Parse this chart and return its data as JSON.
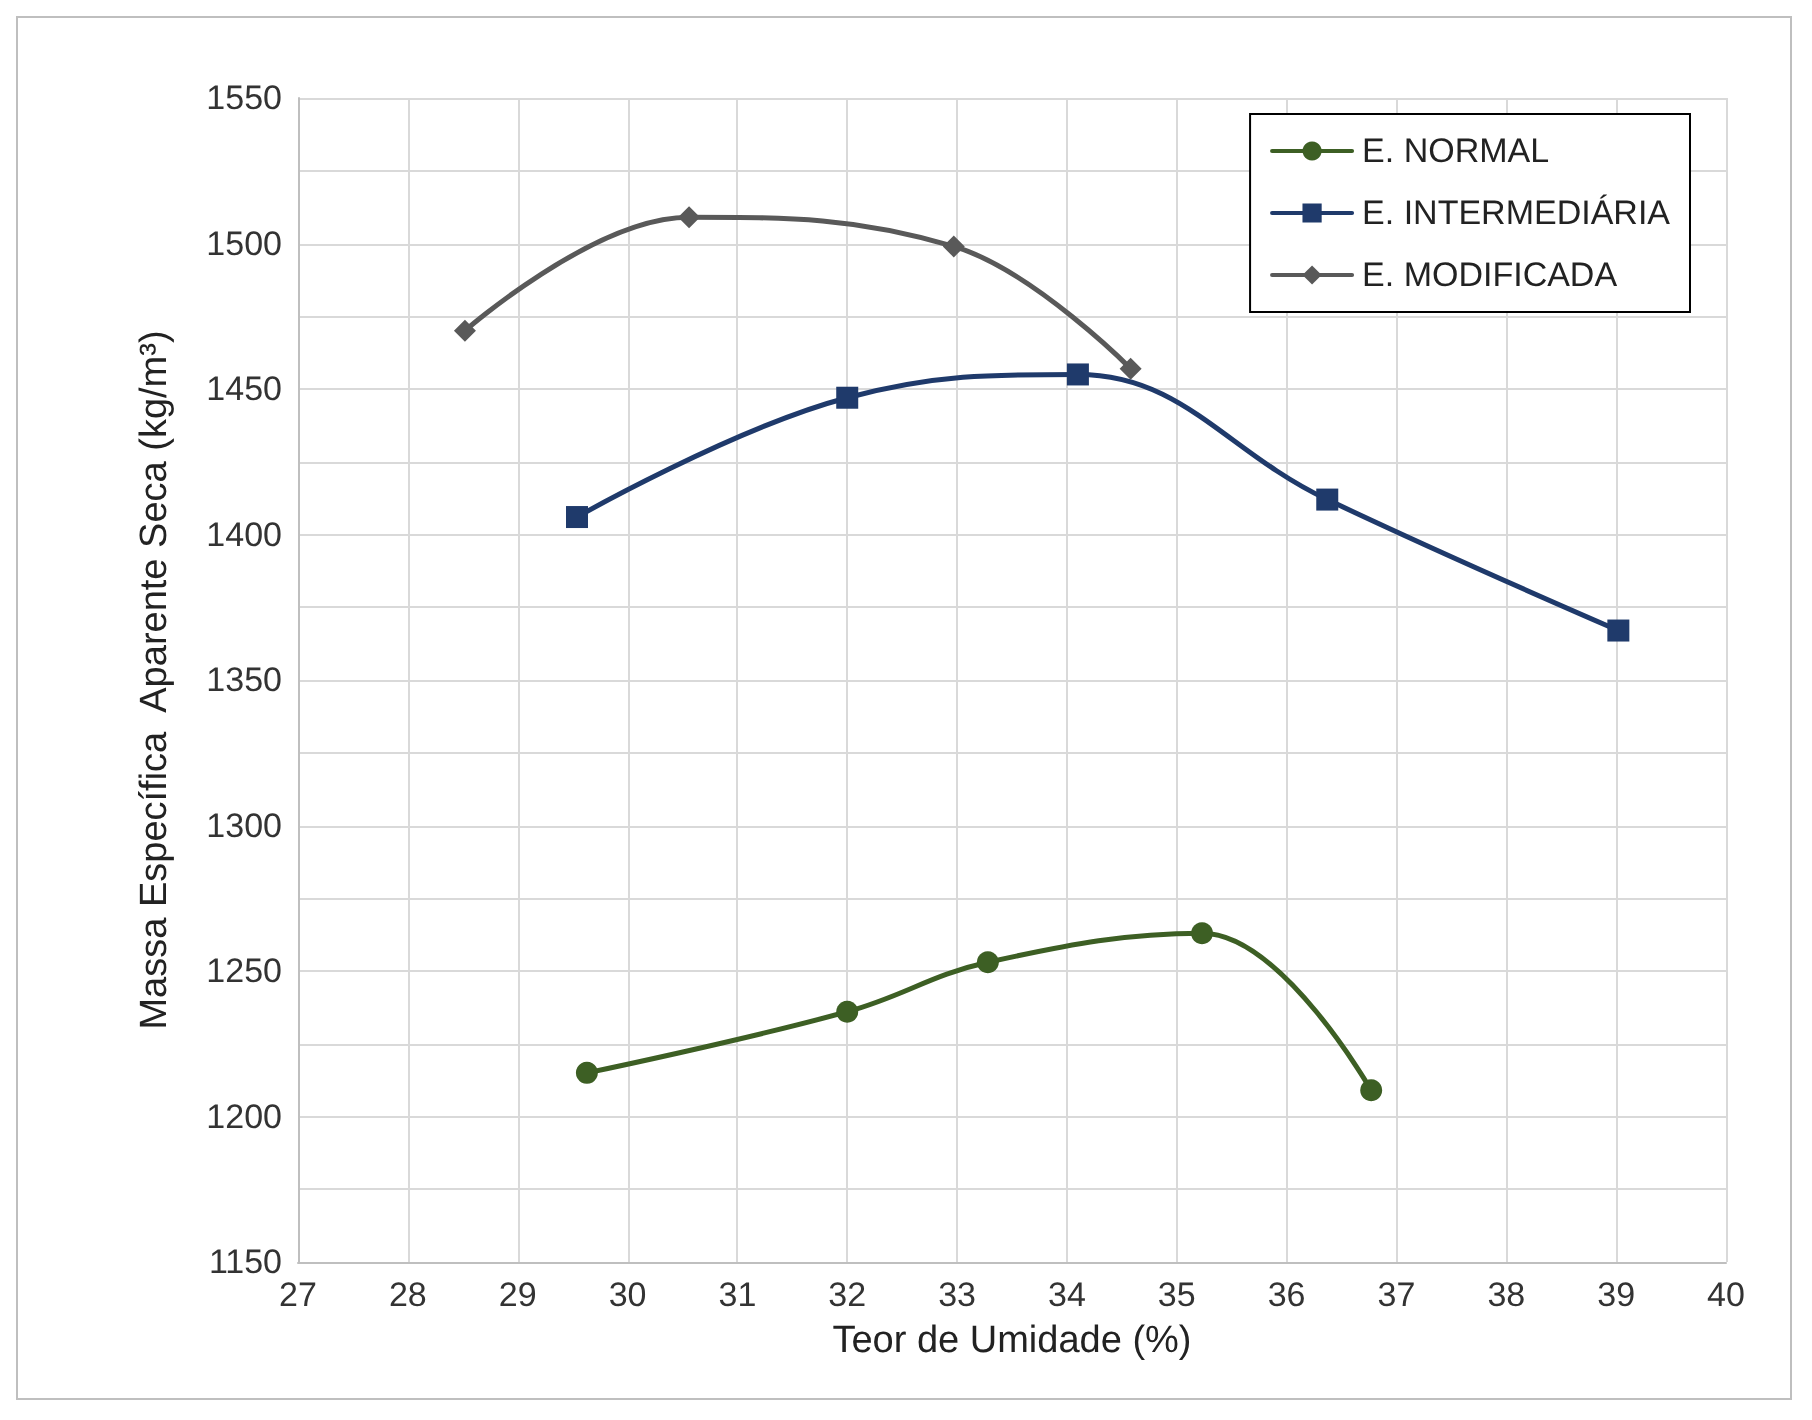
{
  "chart_data": {
    "type": "line",
    "xlabel": "Teor de Umidade (%)",
    "ylabel": "Massa Específica  Aparente Seca (kg/m³)",
    "xlim": [
      27,
      40
    ],
    "xticks": [
      27,
      28,
      29,
      30,
      31,
      32,
      33,
      34,
      35,
      36,
      37,
      38,
      39,
      40
    ],
    "ylim": [
      1150,
      1550
    ],
    "yticks": [
      1150,
      {
        "value": 1175,
        "label": null
      },
      1200,
      {
        "value": 1225,
        "label": null
      },
      1250,
      {
        "value": 1275,
        "label": null
      },
      1300,
      {
        "value": 1325,
        "label": null
      },
      1350,
      {
        "value": 1375,
        "label": null
      },
      1400,
      {
        "value": 1425,
        "label": null
      },
      1450,
      {
        "value": 1475,
        "label": null
      },
      1500,
      {
        "value": 1525,
        "label": null
      },
      1550
    ],
    "grid": true,
    "legend": "top right",
    "line_style": "solid",
    "series": [
      {
        "name": "E. NORMAL",
        "color": "#3d5f24",
        "marker": "circle",
        "x": [
          29.63,
          32.0,
          33.28,
          35.23,
          36.77
        ],
        "values": [
          1215,
          1236,
          1253,
          1263,
          1209
        ]
      },
      {
        "name": "E. INTERMEDIÁRIA",
        "color": "#1f3a6b",
        "marker": "square",
        "x": [
          29.54,
          32.0,
          34.1,
          36.37,
          39.02
        ],
        "values": [
          1406,
          1447,
          1455,
          1412,
          1367
        ]
      },
      {
        "name": "E. MODIFICADA",
        "color": "#595959",
        "marker": "diamond",
        "x": [
          28.52,
          30.56,
          32.97,
          34.58
        ],
        "values": [
          1470,
          1509,
          1499,
          1457
        ]
      }
    ]
  }
}
